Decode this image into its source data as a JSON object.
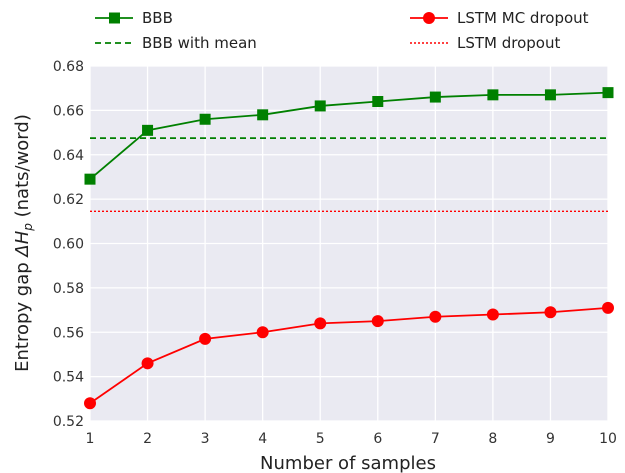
{
  "chart_data": {
    "type": "line",
    "title": "",
    "xlabel": "Number of samples",
    "ylabel_prefix": "Entropy gap ",
    "ylabel_symbol": "ΔH",
    "ylabel_subscript": "p",
    "ylabel_suffix": " (nats/word)",
    "x": [
      1,
      2,
      3,
      4,
      5,
      6,
      7,
      8,
      9,
      10
    ],
    "xlim": [
      1,
      10
    ],
    "ylim": [
      0.52,
      0.68
    ],
    "xticks": [
      1,
      2,
      3,
      4,
      5,
      6,
      7,
      8,
      9,
      10
    ],
    "xtick_labels": [
      "1",
      "2",
      "3",
      "4",
      "5",
      "6",
      "7",
      "8",
      "9",
      "10"
    ],
    "yticks": [
      0.52,
      0.54,
      0.56,
      0.58,
      0.6,
      0.62,
      0.64,
      0.66,
      0.68
    ],
    "ytick_labels": [
      "0.52",
      "0.54",
      "0.56",
      "0.58",
      "0.60",
      "0.62",
      "0.64",
      "0.66",
      "0.68"
    ],
    "grid": true,
    "background": "#eaeaf2",
    "legend_placement": "top, outside plot, two columns",
    "series": [
      {
        "name": "BBB",
        "style": "line-square-markers",
        "color": "#008000",
        "values": [
          0.629,
          0.651,
          0.656,
          0.658,
          0.662,
          0.664,
          0.666,
          0.667,
          0.667,
          0.668
        ]
      },
      {
        "name": "LSTM MC dropout",
        "style": "line-circle-markers",
        "color": "#ff0000",
        "values": [
          0.528,
          0.546,
          0.557,
          0.56,
          0.564,
          0.565,
          0.567,
          0.568,
          0.569,
          0.571
        ]
      }
    ],
    "reference_lines": [
      {
        "name": "BBB with mean",
        "style": "dashed",
        "color": "#008000",
        "value": 0.6475
      },
      {
        "name": "LSTM dropout",
        "style": "dotted",
        "color": "#ff0000",
        "value": 0.6145
      }
    ]
  }
}
